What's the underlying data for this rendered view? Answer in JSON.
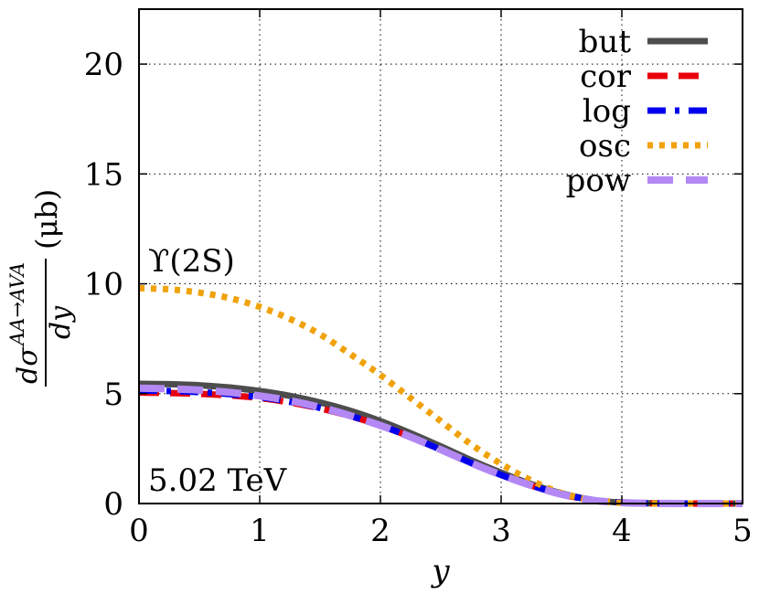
{
  "chart_data": {
    "type": "line",
    "xlabel": "y",
    "ylabel": {
      "numerator": "dσ",
      "superscript": "AA→AVA",
      "denominator": "dy",
      "unit": "(μb)"
    },
    "xlim": [
      0,
      5
    ],
    "ylim": [
      0,
      22.5
    ],
    "xticks": [
      0,
      1,
      2,
      3,
      4,
      5
    ],
    "yticks": [
      0,
      5,
      10,
      15,
      20
    ],
    "grid": true,
    "legend_position": "top-right",
    "annotations": [
      "ϒ(2S)",
      "5.02 TeV"
    ],
    "x": [
      0,
      0.25,
      0.5,
      0.75,
      1,
      1.25,
      1.5,
      1.75,
      2,
      2.25,
      2.5,
      2.75,
      3,
      3.25,
      3.5,
      3.75,
      4,
      4.25,
      4.5,
      4.75,
      5
    ],
    "series": [
      {
        "name": "but",
        "color": "#4d4d4d",
        "style": "solid",
        "values": [
          5.45,
          5.43,
          5.38,
          5.28,
          5.12,
          4.9,
          4.6,
          4.22,
          3.75,
          3.2,
          2.6,
          1.98,
          1.4,
          0.88,
          0.46,
          0.17,
          0.04,
          0.01,
          0,
          0,
          0
        ]
      },
      {
        "name": "cor",
        "color": "#e8000b",
        "style": "dashed",
        "values": [
          5.05,
          5.03,
          4.99,
          4.92,
          4.8,
          4.6,
          4.33,
          3.98,
          3.55,
          3.03,
          2.45,
          1.85,
          1.3,
          0.82,
          0.42,
          0.16,
          0.04,
          0.01,
          0,
          0,
          0
        ]
      },
      {
        "name": "log",
        "color": "#0000ee",
        "style": "dashdot",
        "values": [
          5.15,
          5.12,
          5.07,
          4.98,
          4.84,
          4.63,
          4.35,
          3.99,
          3.55,
          3.03,
          2.45,
          1.85,
          1.3,
          0.82,
          0.43,
          0.17,
          0.05,
          0.01,
          0,
          0,
          0
        ]
      },
      {
        "name": "osc",
        "color": "#f0a20a",
        "style": "dotted",
        "values": [
          9.8,
          9.75,
          9.6,
          9.35,
          8.95,
          8.4,
          7.7,
          6.8,
          5.85,
          4.8,
          3.75,
          2.7,
          1.8,
          1.05,
          0.48,
          0.15,
          0.03,
          0,
          0,
          0,
          0
        ]
      },
      {
        "name": "pow",
        "color": "#b388f5",
        "style": "longdash",
        "values": [
          5.25,
          5.22,
          5.16,
          5.06,
          4.9,
          4.68,
          4.38,
          4.0,
          3.55,
          3.03,
          2.45,
          1.85,
          1.3,
          0.82,
          0.42,
          0.15,
          0.04,
          0.01,
          0,
          0,
          0
        ]
      }
    ]
  }
}
